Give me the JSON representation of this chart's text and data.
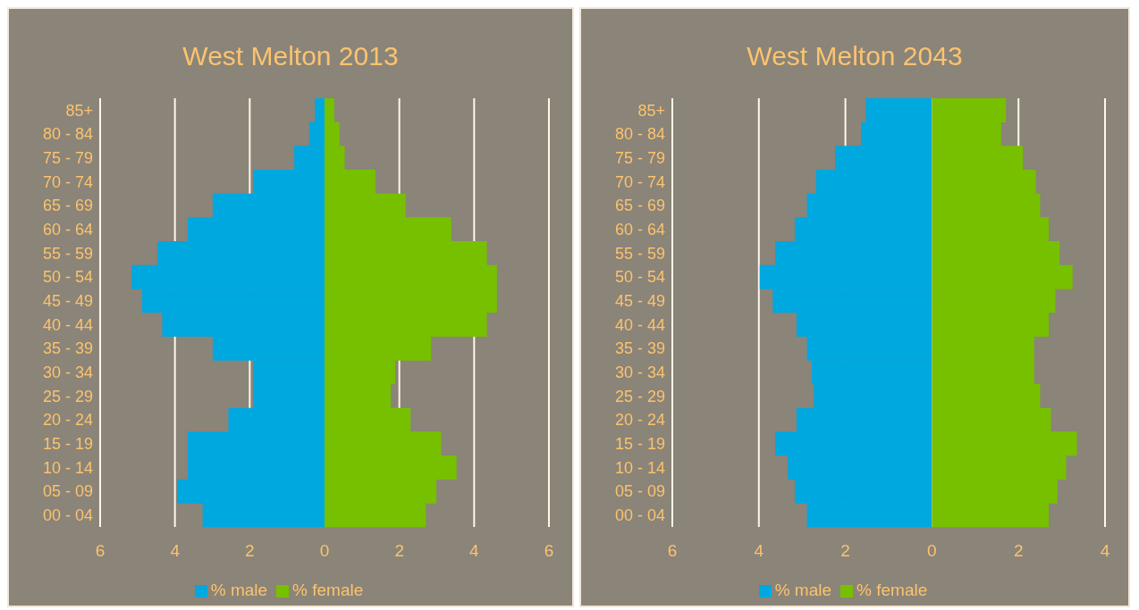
{
  "chart_data": [
    {
      "type": "bar",
      "title": "West Melton 2013",
      "orientation": "horizontal",
      "stacked": true,
      "categories": [
        "85+",
        "80 - 84",
        "75 - 79",
        "70 - 74",
        "65 - 69",
        "60 - 64",
        "55 - 59",
        "50 - 54",
        "45 - 49",
        "40 - 44",
        "35 - 39",
        "30 - 34",
        "25 - 29",
        "20 - 24",
        "15 - 19",
        "10 - 14",
        "05 - 09",
        "00 - 04"
      ],
      "series": [
        {
          "name": "% male",
          "color": "#00a8e0",
          "values": [
            -0.26,
            -0.41,
            -0.81,
            -1.9,
            -2.99,
            -3.66,
            -4.47,
            -5.16,
            -4.88,
            -4.34,
            -2.99,
            -1.9,
            -1.9,
            -2.57,
            -3.66,
            -3.66,
            -3.94,
            -3.26
          ]
        },
        {
          "name": "% female",
          "color": "#76c000",
          "values": [
            0.26,
            0.4,
            0.54,
            1.36,
            2.17,
            3.39,
            4.34,
            4.61,
            4.61,
            4.34,
            2.85,
            1.89,
            1.77,
            2.3,
            3.12,
            3.53,
            2.99,
            2.71
          ]
        }
      ],
      "xlim": [
        -6,
        6
      ],
      "xticks": [
        {
          "value": -6,
          "label": "6"
        },
        {
          "value": -4,
          "label": "4"
        },
        {
          "value": -2,
          "label": "2"
        },
        0,
        2,
        4,
        6
      ],
      "grid": "x",
      "legend": "bottom"
    },
    {
      "type": "bar",
      "title": "West Melton 2043",
      "orientation": "horizontal",
      "stacked": true,
      "categories": [
        "85+",
        "80 - 84",
        "75 - 79",
        "70 - 74",
        "65 - 69",
        "60 - 64",
        "55 - 59",
        "50 - 54",
        "45 - 49",
        "40 - 44",
        "35 - 39",
        "30 - 34",
        "25 - 29",
        "20 - 24",
        "15 - 19",
        "10 - 14",
        "05 - 09",
        "00 - 04"
      ],
      "series": [
        {
          "name": "% male",
          "color": "#00a8e0",
          "values": [
            -1.53,
            -1.64,
            -2.24,
            -2.68,
            -2.89,
            -3.17,
            -3.62,
            -3.98,
            -3.68,
            -3.13,
            -2.89,
            -2.78,
            -2.73,
            -3.13,
            -3.62,
            -3.33,
            -3.17,
            -2.89
          ]
        },
        {
          "name": "% female",
          "color": "#76c000",
          "values": [
            1.71,
            1.6,
            2.1,
            2.4,
            2.5,
            2.7,
            2.95,
            3.25,
            2.85,
            2.7,
            2.36,
            2.36,
            2.5,
            2.75,
            3.35,
            3.1,
            2.9,
            2.7
          ]
        }
      ],
      "xlim": [
        -6,
        4
      ],
      "xticks": [
        {
          "value": -6,
          "label": "6"
        },
        {
          "value": -4,
          "label": "4"
        },
        {
          "value": -2,
          "label": "2"
        },
        0,
        2,
        4
      ],
      "grid": "x",
      "legend": "bottom"
    }
  ]
}
